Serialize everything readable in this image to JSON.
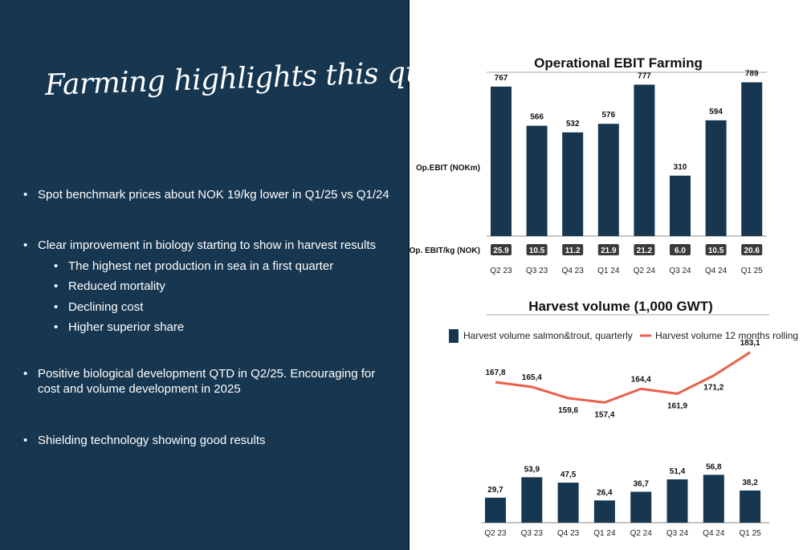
{
  "left_panel": {
    "heading": "Farming highlights this quarter",
    "bullets": [
      "Spot benchmark prices about NOK 19/kg lower in Q1/25 vs Q1/24",
      "Clear improvement in biology starting to show in harvest results",
      "The highest net production in sea in a first quarter",
      "Reduced mortality",
      "Declining cost",
      "Higher superior share",
      "Positive biological development QTD in Q2/25. Encouraging for cost and volume development in 2025",
      "Shielding technology showing good results"
    ],
    "bullet_glyph": "•"
  },
  "colors": {
    "panel_bg": "#17364f",
    "bar": "#17364f",
    "line": "#e8614c",
    "badge": "#3b3b3b"
  },
  "chart_data": [
    {
      "type": "bar",
      "title": "Operational EBIT Farming",
      "ylabel": "Op.EBIT (NOKm)",
      "categories": [
        "Q2 23",
        "Q3 23",
        "Q4 23",
        "Q1 24",
        "Q2 24",
        "Q3 24",
        "Q4 24",
        "Q1 25"
      ],
      "values": [
        767,
        566,
        532,
        576,
        777,
        310,
        594,
        789
      ],
      "value_labels": [
        "767",
        "566",
        "532",
        "576",
        "777",
        "310",
        "594",
        "789"
      ],
      "ylim": [
        0,
        820
      ],
      "secondary_row": {
        "label": "Op. EBIT/kg (NOK)",
        "values": [
          25.9,
          10.5,
          11.2,
          21.9,
          21.2,
          6.0,
          10.5,
          20.6
        ],
        "value_labels": [
          "25.9",
          "10.5",
          "11.2",
          "21.9",
          "21.2",
          "6.0",
          "10.5",
          "20.6"
        ]
      },
      "grid": false
    },
    {
      "type": "bar",
      "title": "Harvest volume (1,000 GWT)",
      "categories": [
        "Q2 23",
        "Q3 23",
        "Q4 23",
        "Q1 24",
        "Q2 24",
        "Q3 24",
        "Q4 24",
        "Q1 25"
      ],
      "legend_position": "top",
      "grid": false,
      "series": [
        {
          "name": "Harvest volume salmon&trout, quarterly",
          "type": "bar",
          "values": [
            29.7,
            53.9,
            47.5,
            26.4,
            36.7,
            51.4,
            56.8,
            38.2
          ],
          "value_labels": [
            "29,7",
            "53,9",
            "47,5",
            "26,4",
            "36,7",
            "51,4",
            "56,8",
            "38,2"
          ]
        },
        {
          "name": "Harvest volume 12 months rolling",
          "type": "line",
          "values": [
            167.8,
            165.4,
            159.6,
            157.4,
            164.4,
            161.9,
            171.2,
            183.1
          ],
          "value_labels": [
            "167,8",
            "165,4",
            "159,6",
            "157,4",
            "164,4",
            "161,9",
            "171,2",
            "183,1"
          ]
        }
      ]
    }
  ]
}
